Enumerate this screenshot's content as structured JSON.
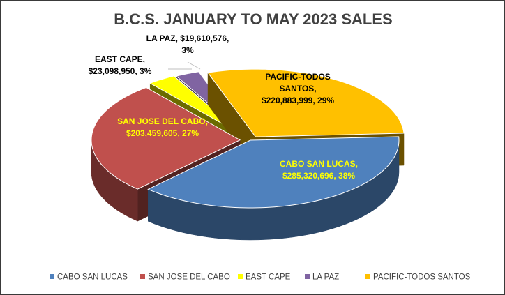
{
  "chart_data": {
    "type": "pie",
    "title": "B.C.S. JANUARY TO MAY 2023 SALES",
    "legend_position": "bottom",
    "slices": [
      {
        "name": "CABO SAN LUCAS",
        "value": 285320696,
        "percent": 38,
        "color": "#4F81BD",
        "label_lines": [
          "CABO SAN LUCAS,",
          "$285,320,696, 38%"
        ],
        "label_color": "#FFFF00"
      },
      {
        "name": "SAN JOSE DEL CABO",
        "value": 203459605,
        "percent": 27,
        "color": "#C0504D",
        "label_lines": [
          "SAN JOSE DEL CABO,",
          "$203,459,605, 27%"
        ],
        "label_color": "#FFFF00"
      },
      {
        "name": "EAST CAPE",
        "value": 23098950,
        "percent": 3,
        "color": "#FFFF00",
        "label_lines": [
          "EAST CAPE,",
          "$23,098,950, 3%"
        ],
        "label_color": "#000000"
      },
      {
        "name": "LA PAZ",
        "value": 19610576,
        "percent": 3,
        "color": "#8064A2",
        "label_lines": [
          "LA PAZ, $19,610,576,",
          "3%"
        ],
        "label_color": "#000000"
      },
      {
        "name": "PACIFIC-TODOS SANTOS",
        "value": 220883999,
        "percent": 29,
        "color": "#FFC000",
        "label_lines": [
          "PACIFIC-TODOS",
          "SANTOS,",
          "$220,883,999, 29%"
        ],
        "label_color": "#000000"
      }
    ]
  }
}
